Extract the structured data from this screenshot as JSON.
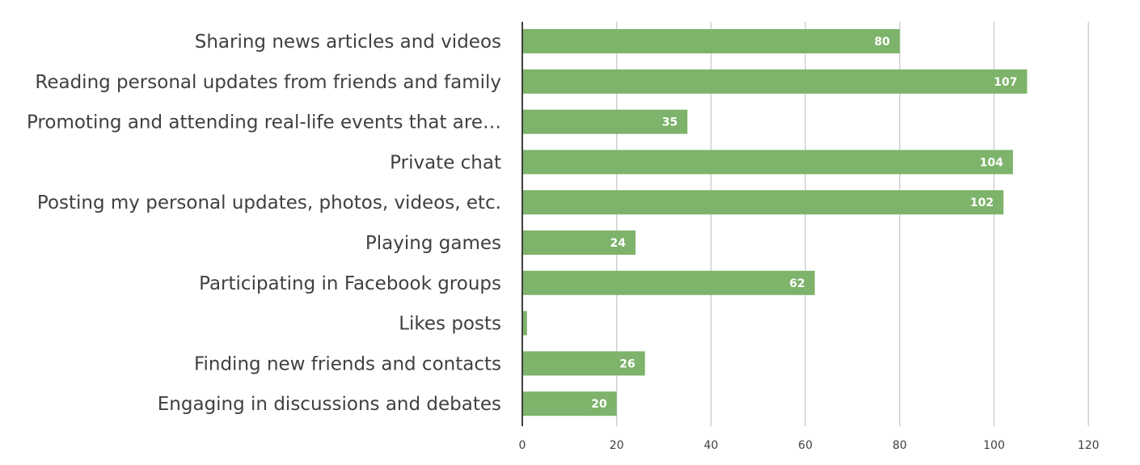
{
  "chart_data": {
    "type": "bar",
    "orientation": "horizontal",
    "categories": [
      "Sharing news articles and videos",
      "Reading personal updates from friends and family",
      "Promoting and attending real-life events that are…",
      "Private chat",
      "Posting my personal updates, photos, videos, etc.",
      "Playing games",
      "Participating in Facebook groups",
      "Likes posts",
      "Finding new friends and contacts",
      "Engaging in discussions and debates"
    ],
    "values": [
      80,
      107,
      35,
      104,
      102,
      24,
      62,
      1,
      26,
      20
    ],
    "data_labels": [
      "80",
      "107",
      "35",
      "104",
      "102",
      "24",
      "62",
      "",
      "26",
      "20"
    ],
    "xlim": [
      0,
      120
    ],
    "x_ticks": [
      "0",
      "20",
      "40",
      "60",
      "80",
      "100",
      "120"
    ],
    "title": "",
    "xlabel": "",
    "ylabel": "",
    "grid": "vertical",
    "legend": "none",
    "bar_color": "#7db36a",
    "data_label_color": "#ffffff",
    "text_color": "#404040",
    "grid_color": "#c9c9c9"
  }
}
